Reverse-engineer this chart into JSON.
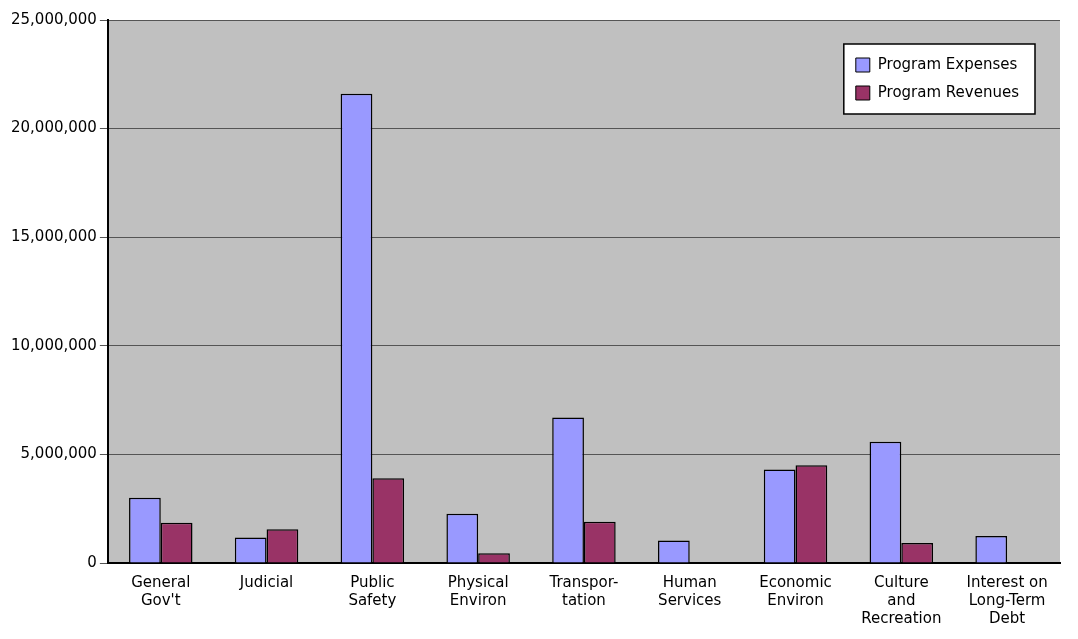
{
  "chart_data": {
    "type": "bar",
    "categories": [
      "General\nGov't",
      "Judicial",
      "Public\nSafety",
      "Physical\nEnviron",
      "Transpor-\ntation",
      "Human\nServices",
      "Economic\nEnviron",
      "Culture\nand\nRecreation",
      "Interest on\nLong-Term\nDebt"
    ],
    "series": [
      {
        "name": "Program Expenses",
        "color": "#9999ff",
        "values": [
          3000000,
          1170000,
          21600000,
          2270000,
          6700000,
          1040000,
          4300000,
          5580000,
          1240000
        ]
      },
      {
        "name": "Program Revenues",
        "color": "#993366",
        "values": [
          1850000,
          1550000,
          3900000,
          450000,
          1900000,
          null,
          4500000,
          920000,
          null
        ]
      }
    ],
    "ylim": [
      0,
      25000000
    ],
    "yticks": [
      {
        "value": 0,
        "label": "0"
      },
      {
        "value": 5000000,
        "label": "5,000,000"
      },
      {
        "value": 10000000,
        "label": "10,000,000"
      },
      {
        "value": 15000000,
        "label": "15,000,000"
      },
      {
        "value": 20000000,
        "label": "20,000,000"
      },
      {
        "value": 25000000,
        "label": "25,000,000"
      }
    ],
    "grid": "y",
    "legend": "top right"
  }
}
